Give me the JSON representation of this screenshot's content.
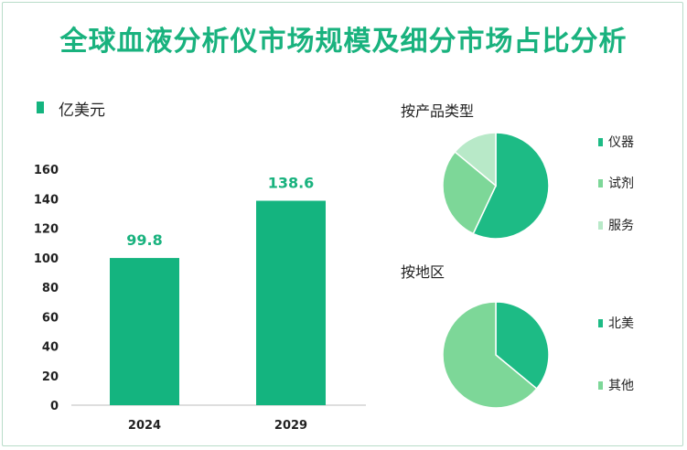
{
  "title": "全球血液分析仪市场规模及细分市场占比分析",
  "colors": {
    "accent": "#19b27e",
    "bar": "#14b47f",
    "pie_dark": "#1dbb85",
    "pie_mid": "#7dd798",
    "pie_light": "#b8e9c8"
  },
  "chart_data": [
    {
      "type": "bar",
      "title": "",
      "legend": "亿美元",
      "categories": [
        "2024",
        "2029"
      ],
      "values": [
        99.8,
        138.6
      ],
      "value_labels": [
        "99.8",
        "138.6"
      ],
      "ylim": [
        0,
        160
      ],
      "yticks": [
        "0",
        "20",
        "40",
        "60",
        "80",
        "100",
        "120",
        "140",
        "160"
      ],
      "grid": false
    },
    {
      "type": "pie",
      "title": "按产品类型",
      "labels": [
        "仪器",
        "试剂",
        "服务"
      ],
      "values": [
        57,
        29,
        14
      ],
      "colors": [
        "#1dbb85",
        "#7dd798",
        "#b8e9c8"
      ]
    },
    {
      "type": "pie",
      "title": "按地区",
      "labels": [
        "北美",
        "其他"
      ],
      "values": [
        36,
        64
      ],
      "colors": [
        "#1dbb85",
        "#7dd798"
      ]
    }
  ]
}
